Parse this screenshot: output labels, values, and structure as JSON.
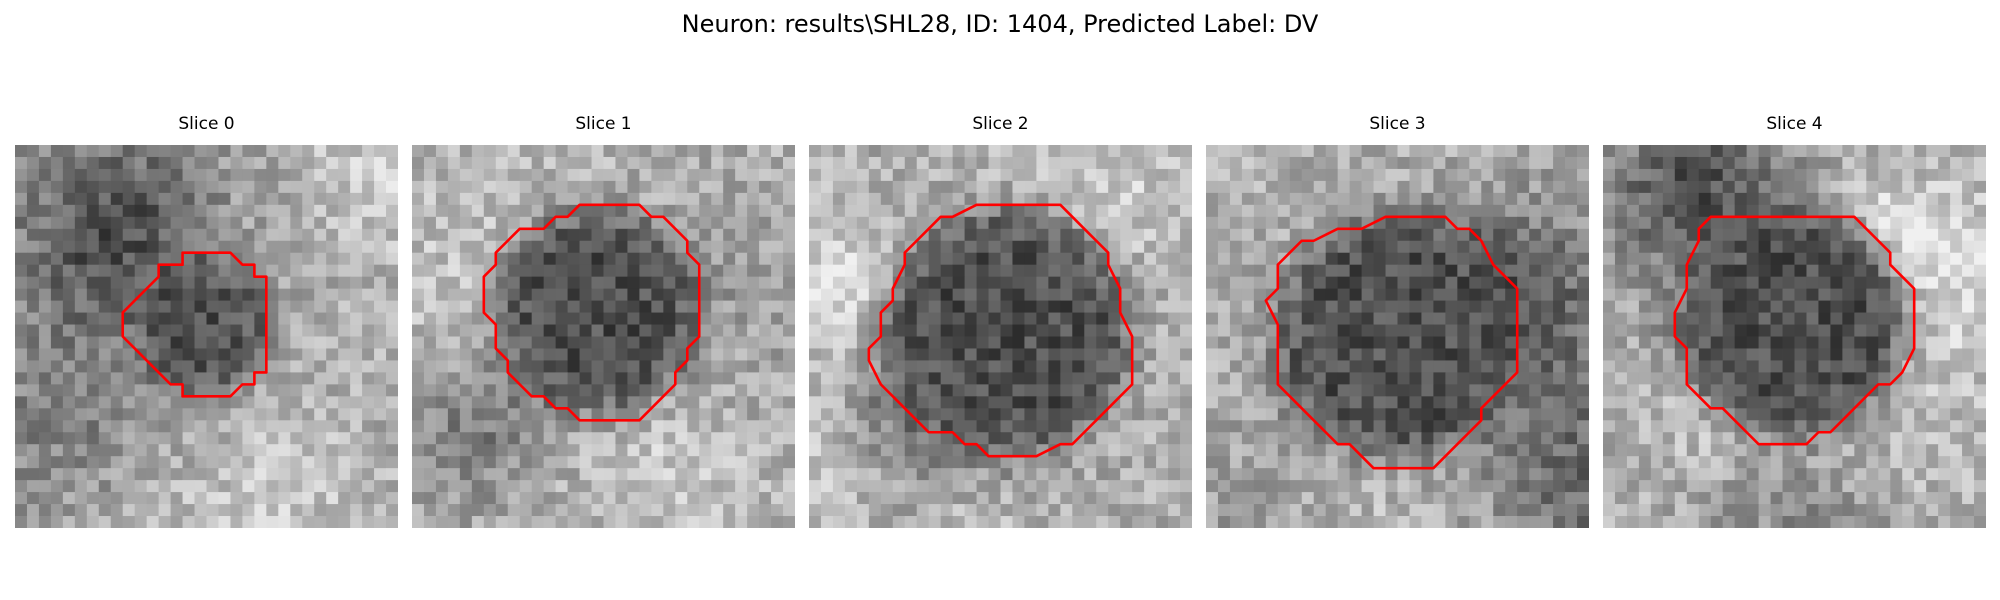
{
  "figure": {
    "title": "Neuron: results\\SHL28, ID: 1404, Predicted Label: DV",
    "contour_color": "#ff0000"
  },
  "panels": [
    {
      "title": "Slice 0"
    },
    {
      "title": "Slice 1"
    },
    {
      "title": "Slice 2"
    },
    {
      "title": "Slice 3"
    },
    {
      "title": "Slice 4"
    }
  ]
}
